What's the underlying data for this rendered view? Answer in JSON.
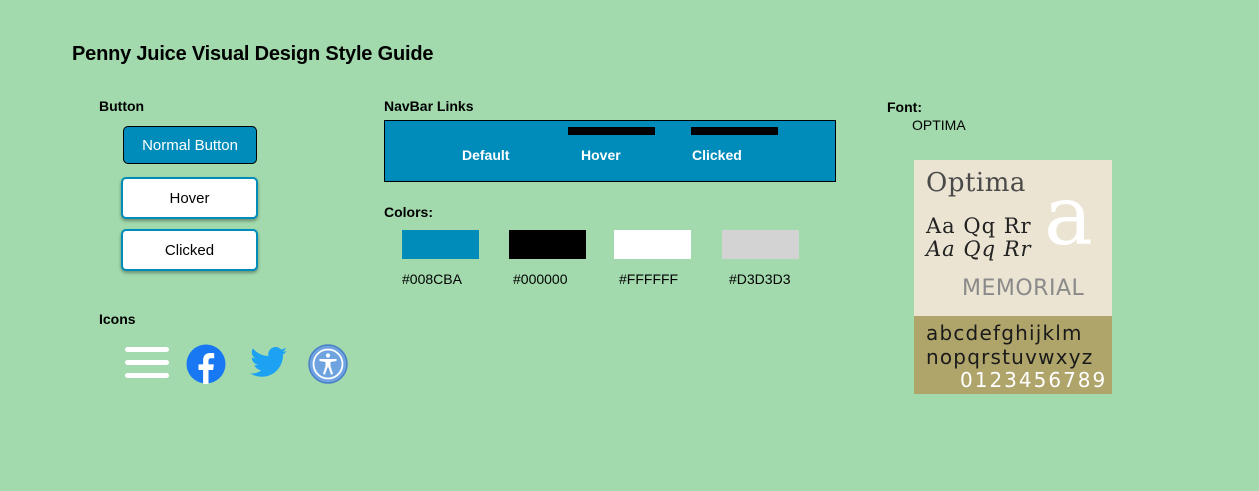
{
  "page": {
    "title": "Penny Juice Visual Design Style Guide"
  },
  "buttons": {
    "label": "Button",
    "normal": "Normal Button",
    "hover": "Hover",
    "clicked": "Clicked"
  },
  "navbar": {
    "label": "NavBar Links",
    "links": [
      "Default",
      "Hover",
      "Clicked"
    ]
  },
  "colors": {
    "label": "Colors:",
    "swatches": [
      {
        "hex": "#008CBA",
        "label": "#008CBA"
      },
      {
        "hex": "#000000",
        "label": "#000000"
      },
      {
        "hex": "#FFFFFF",
        "label": "#FFFFFF"
      },
      {
        "hex": "#D3D3D3",
        "label": "#D3D3D3"
      }
    ]
  },
  "icons": {
    "label": "Icons",
    "items": [
      "hamburger-menu-icon",
      "facebook-icon",
      "twitter-icon",
      "accessibility-icon"
    ]
  },
  "font": {
    "label": "Font:",
    "name": "OPTIMA",
    "sample": {
      "title": "Optima",
      "line1": "Aa Qq  Rr",
      "line2": "Aa Qq  Rr",
      "big_letter": "a",
      "memorial": "MEMORIAL",
      "lowercase1": "abcdefghijklm",
      "lowercase2": "nopqrstuvwxyz",
      "digits": "0123456789"
    }
  },
  "theme": {
    "background": "#A2DAAD",
    "accent": "#008CBA"
  }
}
